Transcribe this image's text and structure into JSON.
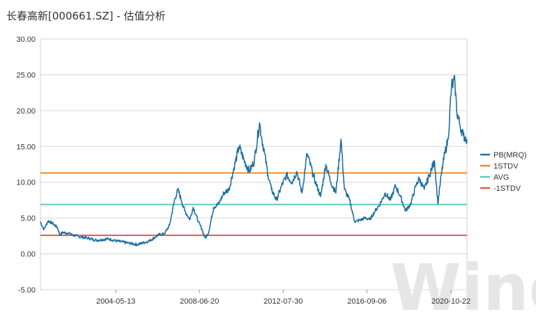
{
  "chart_data": {
    "type": "line",
    "title": "长春高新[000661.SZ] - 估值分析",
    "ylim": [
      -5,
      30
    ],
    "yticks": [
      "30.00",
      "25.00",
      "20.00",
      "15.00",
      "10.00",
      "5.00",
      "0.00",
      "-5.00"
    ],
    "ytick_values": [
      30,
      25,
      20,
      15,
      10,
      5,
      0,
      -5
    ],
    "xlim": [
      "2000-09-01",
      "2021-08-05"
    ],
    "xticks": [
      "2004-05-13",
      "2008-06-20",
      "2012-07-30",
      "2016-09-06",
      "2020-10-22"
    ],
    "grid": true,
    "legend_position": "right",
    "watermark": "Wind",
    "series": [
      {
        "name": "PB(MRQ)",
        "kind": "line",
        "color": "#1f6fa0",
        "x": [
          "2000-09-01",
          "2000-11-01",
          "2001-01-15",
          "2001-04-01",
          "2001-07-01",
          "2001-08-15",
          "2001-10-01",
          "2002-01-01",
          "2002-06-01",
          "2003-01-01",
          "2003-06-01",
          "2004-01-01",
          "2004-06-01",
          "2005-01-01",
          "2005-06-01",
          "2006-01-01",
          "2006-07-01",
          "2006-10-01",
          "2007-01-01",
          "2007-04-01",
          "2007-06-01",
          "2007-08-01",
          "2007-10-01",
          "2008-01-01",
          "2008-03-01",
          "2008-06-01",
          "2008-08-01",
          "2008-10-01",
          "2008-12-01",
          "2009-03-01",
          "2009-06-01",
          "2009-09-01",
          "2009-12-01",
          "2010-03-01",
          "2010-06-01",
          "2010-09-01",
          "2010-12-01",
          "2011-03-01",
          "2011-06-01",
          "2011-07-15",
          "2011-09-01",
          "2011-11-01",
          "2012-01-01",
          "2012-04-01",
          "2012-07-01",
          "2012-10-01",
          "2013-01-01",
          "2013-04-01",
          "2013-07-01",
          "2013-10-01",
          "2014-01-01",
          "2014-03-01",
          "2014-06-01",
          "2014-09-01",
          "2014-12-01",
          "2015-03-01",
          "2015-06-01",
          "2015-08-01",
          "2015-11-01",
          "2016-02-01",
          "2016-05-01",
          "2016-08-01",
          "2016-11-01",
          "2017-02-01",
          "2017-05-01",
          "2017-08-01",
          "2017-11-01",
          "2018-02-01",
          "2018-05-01",
          "2018-08-01",
          "2018-11-01",
          "2019-02-01",
          "2019-04-01",
          "2019-07-01",
          "2019-10-01",
          "2020-01-01",
          "2020-03-01",
          "2020-05-01",
          "2020-07-01",
          "2020-09-01",
          "2020-11-01",
          "2021-01-01",
          "2021-02-01",
          "2021-04-01",
          "2021-06-01",
          "2021-08-05"
        ],
        "y": [
          4.5,
          3.4,
          4.6,
          4.3,
          3.7,
          2.6,
          3.0,
          2.9,
          2.5,
          2.2,
          1.9,
          2.1,
          1.8,
          1.5,
          1.3,
          1.8,
          2.7,
          2.8,
          4.0,
          7.5,
          9.0,
          7.5,
          6.0,
          4.8,
          6.5,
          4.5,
          3.5,
          2.2,
          3.0,
          6.5,
          7.0,
          8.5,
          9.0,
          12.0,
          15.0,
          13.0,
          11.5,
          13.0,
          18.3,
          16.0,
          14.0,
          11.0,
          9.0,
          7.5,
          9.5,
          11.0,
          10.0,
          11.5,
          8.5,
          14.0,
          11.5,
          10.0,
          8.0,
          12.5,
          10.0,
          8.5,
          16.0,
          9.0,
          7.5,
          4.5,
          4.7,
          5.0,
          4.8,
          6.0,
          7.0,
          8.5,
          7.5,
          9.5,
          8.0,
          6.0,
          7.0,
          9.5,
          10.5,
          9.0,
          11.0,
          13.0,
          7.0,
          11.0,
          14.0,
          16.0,
          23.5,
          24.0,
          20.0,
          18.0,
          16.5,
          16.0
        ]
      },
      {
        "name": "1STDV",
        "kind": "hline",
        "color": "#f08c1e",
        "value": 11.3
      },
      {
        "name": "AVG",
        "kind": "hline",
        "color": "#5fc8c0",
        "value": 6.9
      },
      {
        "name": "-1STDV",
        "kind": "hline",
        "color": "#e05a52",
        "value": 2.6
      }
    ]
  }
}
